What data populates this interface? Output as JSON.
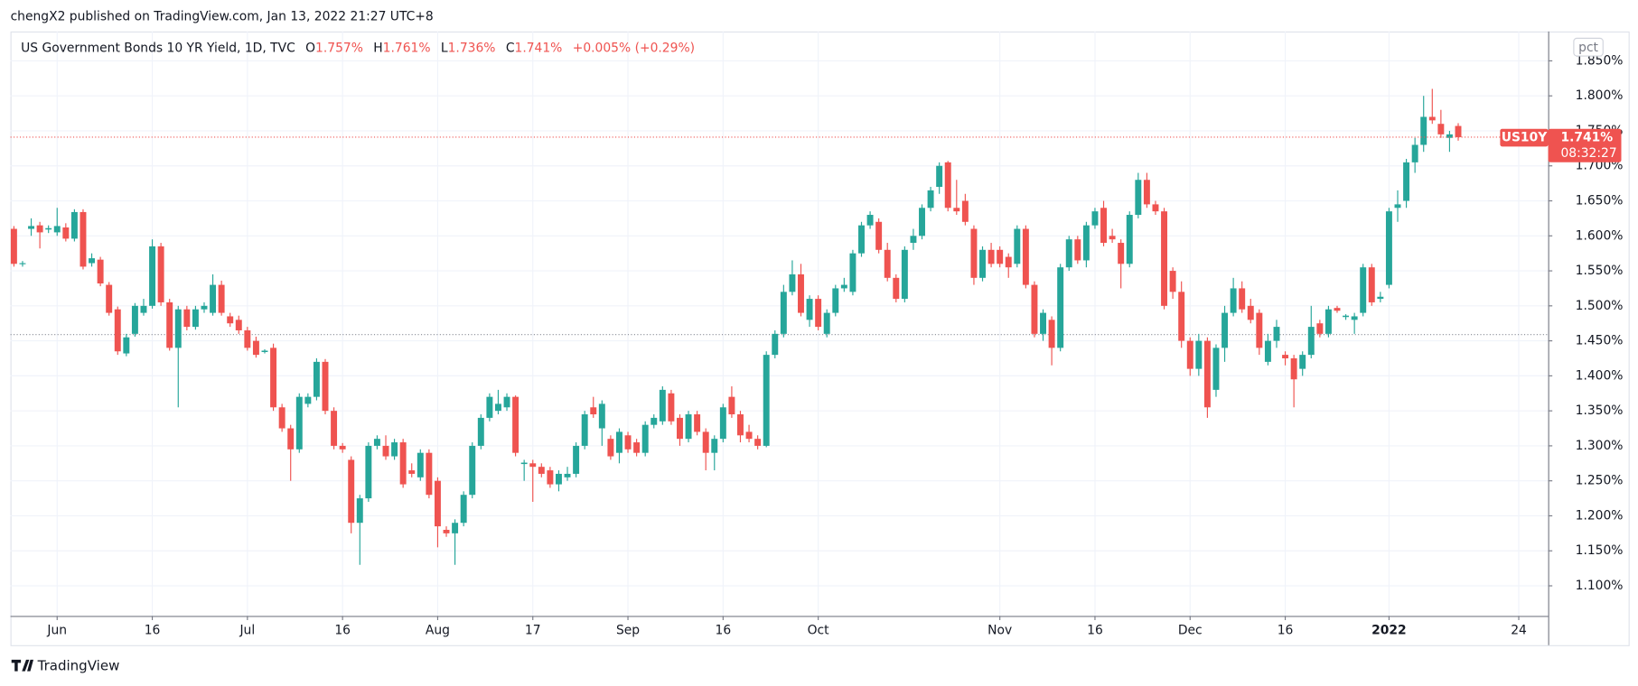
{
  "header": {
    "text": "chengX2 published on TradingView.com, Jan 13, 2022 21:27 UTC+8"
  },
  "footer": {
    "brand": "TradingView"
  },
  "chart_data": {
    "type": "candlestick",
    "legend": {
      "symbol": "US Government Bonds 10 YR Yield, 1D, TVC",
      "o_label": "O",
      "o": "1.757%",
      "h_label": "H",
      "h": "1.761%",
      "l_label": "L",
      "l": "1.736%",
      "c_label": "C",
      "c": "1.741%",
      "change": "+0.005% (+0.29%)"
    },
    "scale_button": "pct",
    "last_price": {
      "value": 1.741,
      "label": "1.741%",
      "ticker": "US10Y",
      "countdown": "08:32:27"
    },
    "reference_line": 1.459,
    "up_color": "#26a69a",
    "down_color": "#ef5350",
    "grid": true,
    "xlim": [
      -0.4,
      177.4
    ],
    "xticks": [
      {
        "value": 5,
        "label": "Jun"
      },
      {
        "value": 16,
        "label": "16"
      },
      {
        "value": 27,
        "label": "Jul"
      },
      {
        "value": 38,
        "label": "16"
      },
      {
        "value": 49,
        "label": "Aug"
      },
      {
        "value": 60,
        "label": "17"
      },
      {
        "value": 71,
        "label": "Sep"
      },
      {
        "value": 82,
        "label": "16"
      },
      {
        "value": 93,
        "label": "Oct"
      },
      {
        "value": 114,
        "label": "Nov"
      },
      {
        "value": 125,
        "label": "16"
      },
      {
        "value": 136,
        "label": "Dec"
      },
      {
        "value": 147,
        "label": "16"
      },
      {
        "value": 159,
        "label": "2022"
      },
      {
        "value": 174,
        "label": "24"
      }
    ],
    "ylim": [
      1.057,
      1.892
    ],
    "yticks": [
      {
        "value": 1.1,
        "label": "1.100%"
      },
      {
        "value": 1.15,
        "label": "1.150%"
      },
      {
        "value": 1.2,
        "label": "1.200%"
      },
      {
        "value": 1.25,
        "label": "1.250%"
      },
      {
        "value": 1.3,
        "label": "1.300%"
      },
      {
        "value": 1.35,
        "label": "1.350%"
      },
      {
        "value": 1.4,
        "label": "1.400%"
      },
      {
        "value": 1.45,
        "label": "1.450%"
      },
      {
        "value": 1.5,
        "label": "1.500%"
      },
      {
        "value": 1.55,
        "label": "1.550%"
      },
      {
        "value": 1.6,
        "label": "1.600%"
      },
      {
        "value": 1.65,
        "label": "1.650%"
      },
      {
        "value": 1.7,
        "label": "1.700%"
      },
      {
        "value": 1.75,
        "label": "1.750%"
      },
      {
        "value": 1.8,
        "label": "1.800%"
      },
      {
        "value": 1.85,
        "label": "1.850%"
      }
    ],
    "open": [
      1.61,
      1.56,
      1.61,
      1.615,
      1.609,
      1.605,
      1.612,
      1.596,
      1.634,
      1.561,
      1.566,
      1.53,
      1.495,
      1.432,
      1.46,
      1.49,
      1.5,
      1.585,
      1.505,
      1.44,
      1.495,
      1.47,
      1.495,
      1.49,
      1.53,
      1.485,
      1.48,
      1.465,
      1.45,
      1.434,
      1.44,
      1.355,
      1.325,
      1.295,
      1.36,
      1.37,
      1.42,
      1.35,
      1.3,
      1.28,
      1.19,
      1.225,
      1.3,
      1.3,
      1.285,
      1.305,
      1.265,
      1.255,
      1.29,
      1.25,
      1.18,
      1.175,
      1.19,
      1.23,
      1.3,
      1.34,
      1.35,
      1.355,
      1.37,
      1.274,
      1.275,
      1.27,
      1.265,
      1.245,
      1.255,
      1.26,
      1.3,
      1.355,
      1.325,
      1.31,
      1.29,
      1.315,
      1.305,
      1.29,
      1.33,
      1.335,
      1.375,
      1.34,
      1.31,
      1.345,
      1.32,
      1.29,
      1.31,
      1.37,
      1.345,
      1.32,
      1.31,
      1.3,
      1.43,
      1.46,
      1.52,
      1.545,
      1.48,
      1.51,
      1.46,
      1.49,
      1.525,
      1.52,
      1.575,
      1.615,
      1.62,
      1.58,
      1.54,
      1.51,
      1.59,
      1.6,
      1.64,
      1.67,
      1.705,
      1.64,
      1.65,
      1.61,
      1.54,
      1.58,
      1.58,
      1.57,
      1.56,
      1.61,
      1.53,
      1.46,
      1.48,
      1.44,
      1.555,
      1.595,
      1.565,
      1.615,
      1.64,
      1.6,
      1.59,
      1.56,
      1.63,
      1.68,
      1.645,
      1.635,
      1.55,
      1.52,
      1.45,
      1.41,
      1.45,
      1.38,
      1.44,
      1.49,
      1.525,
      1.5,
      1.49,
      1.42,
      1.45,
      1.43,
      1.425,
      1.41,
      1.43,
      1.475,
      1.46,
      1.497,
      1.484,
      1.48,
      1.49,
      1.555,
      1.51,
      1.53,
      1.64,
      1.65,
      1.705,
      1.73,
      1.77,
      1.76,
      1.74,
      1.757
    ],
    "high": [
      1.614,
      1.564,
      1.625,
      1.62,
      1.615,
      1.64,
      1.618,
      1.638,
      1.638,
      1.575,
      1.57,
      1.534,
      1.499,
      1.46,
      1.504,
      1.51,
      1.595,
      1.59,
      1.51,
      1.5,
      1.5,
      1.5,
      1.505,
      1.545,
      1.536,
      1.49,
      1.486,
      1.47,
      1.456,
      1.438,
      1.446,
      1.36,
      1.33,
      1.375,
      1.375,
      1.425,
      1.424,
      1.355,
      1.304,
      1.285,
      1.23,
      1.305,
      1.315,
      1.315,
      1.31,
      1.31,
      1.275,
      1.295,
      1.295,
      1.255,
      1.185,
      1.195,
      1.235,
      1.305,
      1.345,
      1.375,
      1.38,
      1.375,
      1.372,
      1.28,
      1.28,
      1.275,
      1.27,
      1.265,
      1.27,
      1.305,
      1.35,
      1.37,
      1.365,
      1.315,
      1.325,
      1.32,
      1.31,
      1.335,
      1.345,
      1.385,
      1.38,
      1.345,
      1.35,
      1.35,
      1.325,
      1.315,
      1.36,
      1.385,
      1.35,
      1.33,
      1.315,
      1.435,
      1.465,
      1.53,
      1.565,
      1.56,
      1.515,
      1.515,
      1.495,
      1.53,
      1.54,
      1.58,
      1.62,
      1.635,
      1.625,
      1.59,
      1.545,
      1.585,
      1.61,
      1.645,
      1.67,
      1.705,
      1.707,
      1.68,
      1.66,
      1.615,
      1.585,
      1.59,
      1.585,
      1.575,
      1.615,
      1.615,
      1.535,
      1.495,
      1.485,
      1.56,
      1.6,
      1.6,
      1.62,
      1.64,
      1.65,
      1.61,
      1.595,
      1.635,
      1.69,
      1.69,
      1.65,
      1.64,
      1.555,
      1.535,
      1.455,
      1.46,
      1.455,
      1.445,
      1.5,
      1.54,
      1.535,
      1.51,
      1.495,
      1.46,
      1.48,
      1.435,
      1.43,
      1.435,
      1.5,
      1.48,
      1.5,
      1.5,
      1.488,
      1.49,
      1.56,
      1.56,
      1.52,
      1.64,
      1.665,
      1.71,
      1.74,
      1.8,
      1.81,
      1.78,
      1.75,
      1.761
    ],
    "low": [
      1.556,
      1.556,
      1.6,
      1.582,
      1.604,
      1.6,
      1.592,
      1.592,
      1.552,
      1.556,
      1.528,
      1.486,
      1.43,
      1.428,
      1.456,
      1.486,
      1.496,
      1.5,
      1.436,
      1.355,
      1.465,
      1.466,
      1.49,
      1.486,
      1.486,
      1.47,
      1.46,
      1.436,
      1.426,
      1.432,
      1.35,
      1.32,
      1.25,
      1.29,
      1.355,
      1.365,
      1.345,
      1.295,
      1.29,
      1.175,
      1.13,
      1.22,
      1.295,
      1.28,
      1.28,
      1.24,
      1.255,
      1.25,
      1.225,
      1.155,
      1.17,
      1.13,
      1.185,
      1.225,
      1.295,
      1.335,
      1.345,
      1.35,
      1.285,
      1.25,
      1.22,
      1.255,
      1.24,
      1.235,
      1.25,
      1.255,
      1.295,
      1.34,
      1.3,
      1.28,
      1.275,
      1.29,
      1.285,
      1.285,
      1.325,
      1.33,
      1.33,
      1.3,
      1.305,
      1.315,
      1.265,
      1.265,
      1.305,
      1.34,
      1.305,
      1.305,
      1.295,
      1.298,
      1.425,
      1.455,
      1.515,
      1.485,
      1.47,
      1.465,
      1.455,
      1.485,
      1.52,
      1.515,
      1.57,
      1.61,
      1.575,
      1.535,
      1.505,
      1.505,
      1.58,
      1.595,
      1.635,
      1.66,
      1.635,
      1.63,
      1.615,
      1.53,
      1.535,
      1.555,
      1.555,
      1.54,
      1.555,
      1.525,
      1.455,
      1.45,
      1.415,
      1.435,
      1.55,
      1.56,
      1.555,
      1.61,
      1.585,
      1.59,
      1.525,
      1.555,
      1.625,
      1.64,
      1.63,
      1.495,
      1.51,
      1.44,
      1.4,
      1.4,
      1.34,
      1.37,
      1.42,
      1.485,
      1.49,
      1.475,
      1.43,
      1.415,
      1.44,
      1.415,
      1.355,
      1.4,
      1.425,
      1.455,
      1.455,
      1.49,
      1.48,
      1.46,
      1.485,
      1.5,
      1.505,
      1.525,
      1.62,
      1.64,
      1.69,
      1.72,
      1.76,
      1.74,
      1.72,
      1.736
    ],
    "close": [
      1.56,
      1.561,
      1.614,
      1.605,
      1.611,
      1.614,
      1.596,
      1.634,
      1.556,
      1.568,
      1.532,
      1.49,
      1.435,
      1.455,
      1.5,
      1.5,
      1.585,
      1.505,
      1.44,
      1.495,
      1.47,
      1.495,
      1.5,
      1.53,
      1.49,
      1.475,
      1.465,
      1.44,
      1.43,
      1.436,
      1.355,
      1.325,
      1.295,
      1.37,
      1.37,
      1.42,
      1.35,
      1.3,
      1.295,
      1.19,
      1.225,
      1.3,
      1.31,
      1.285,
      1.305,
      1.245,
      1.26,
      1.29,
      1.23,
      1.185,
      1.175,
      1.19,
      1.23,
      1.3,
      1.34,
      1.37,
      1.36,
      1.37,
      1.29,
      1.276,
      1.27,
      1.26,
      1.245,
      1.26,
      1.26,
      1.3,
      1.345,
      1.345,
      1.36,
      1.285,
      1.32,
      1.295,
      1.29,
      1.33,
      1.34,
      1.38,
      1.335,
      1.31,
      1.345,
      1.32,
      1.29,
      1.31,
      1.355,
      1.345,
      1.315,
      1.31,
      1.3,
      1.43,
      1.46,
      1.52,
      1.545,
      1.49,
      1.51,
      1.47,
      1.49,
      1.525,
      1.53,
      1.575,
      1.615,
      1.63,
      1.58,
      1.54,
      1.51,
      1.58,
      1.6,
      1.64,
      1.665,
      1.7,
      1.64,
      1.635,
      1.62,
      1.54,
      1.58,
      1.56,
      1.56,
      1.555,
      1.61,
      1.53,
      1.46,
      1.49,
      1.44,
      1.555,
      1.595,
      1.565,
      1.615,
      1.635,
      1.59,
      1.595,
      1.56,
      1.63,
      1.68,
      1.645,
      1.635,
      1.5,
      1.52,
      1.45,
      1.41,
      1.45,
      1.355,
      1.44,
      1.49,
      1.525,
      1.495,
      1.48,
      1.44,
      1.45,
      1.47,
      1.425,
      1.395,
      1.43,
      1.47,
      1.46,
      1.495,
      1.493,
      1.486,
      1.485,
      1.555,
      1.505,
      1.513,
      1.635,
      1.645,
      1.705,
      1.73,
      1.77,
      1.765,
      1.745,
      1.745,
      1.741
    ]
  }
}
